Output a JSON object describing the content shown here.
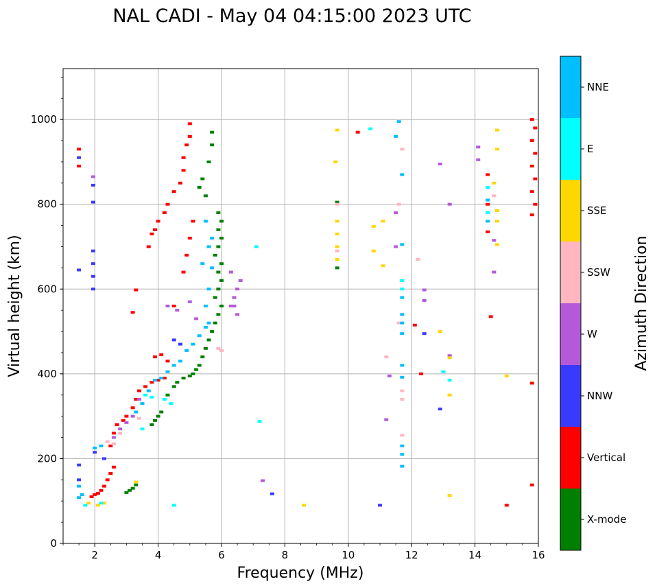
{
  "chart_data": {
    "type": "scatter",
    "title": "NAL CADI - May 04 04:15:00 2023 UTC",
    "xlabel": "Frequency (MHz)",
    "ylabel": "Virtual height (km)",
    "xlim": [
      1,
      16
    ],
    "ylim": [
      0,
      1120
    ],
    "xticks": [
      2,
      4,
      6,
      8,
      10,
      12,
      14,
      16
    ],
    "yticks": [
      0,
      200,
      400,
      600,
      800,
      1000
    ],
    "grid": true,
    "colorbar": {
      "title": "Azimuth Direction",
      "categories": [
        {
          "label": "X-mode",
          "color": "#008000"
        },
        {
          "label": "Vertical",
          "color": "#ff0000"
        },
        {
          "label": "NNW",
          "color": "#3a3aff"
        },
        {
          "label": "W",
          "color": "#b45ad8"
        },
        {
          "label": "SSW",
          "color": "#ffb6c1"
        },
        {
          "label": "SSE",
          "color": "#ffd700"
        },
        {
          "label": "E",
          "color": "#00ffff"
        },
        {
          "label": "NNE",
          "color": "#00bfff"
        }
      ]
    },
    "series": [
      {
        "name": "X-mode",
        "points": [
          [
            3.0,
            120
          ],
          [
            3.1,
            125
          ],
          [
            3.2,
            130
          ],
          [
            3.3,
            138
          ],
          [
            3.8,
            280
          ],
          [
            3.9,
            290
          ],
          [
            4.0,
            300
          ],
          [
            4.1,
            310
          ],
          [
            4.3,
            350
          ],
          [
            4.5,
            370
          ],
          [
            4.6,
            380
          ],
          [
            4.8,
            390
          ],
          [
            5.0,
            395
          ],
          [
            5.1,
            400
          ],
          [
            5.2,
            410
          ],
          [
            5.3,
            420
          ],
          [
            5.4,
            440
          ],
          [
            5.5,
            460
          ],
          [
            5.6,
            480
          ],
          [
            5.7,
            500
          ],
          [
            5.8,
            520
          ],
          [
            5.9,
            540
          ],
          [
            6.0,
            560
          ],
          [
            5.8,
            580
          ],
          [
            5.9,
            600
          ],
          [
            6.0,
            620
          ],
          [
            5.9,
            640
          ],
          [
            6.0,
            660
          ],
          [
            5.8,
            680
          ],
          [
            5.9,
            700
          ],
          [
            6.0,
            720
          ],
          [
            5.9,
            740
          ],
          [
            6.0,
            760
          ],
          [
            5.9,
            780
          ],
          [
            5.5,
            820
          ],
          [
            5.3,
            840
          ],
          [
            5.4,
            860
          ],
          [
            5.6,
            900
          ],
          [
            5.7,
            940
          ],
          [
            5.7,
            970
          ],
          [
            9.65,
            650
          ],
          [
            9.65,
            805
          ]
        ]
      },
      {
        "name": "Vertical",
        "points": [
          [
            1.5,
            930
          ],
          [
            1.5,
            890
          ],
          [
            1.9,
            110
          ],
          [
            2.0,
            115
          ],
          [
            2.1,
            118
          ],
          [
            2.2,
            125
          ],
          [
            2.3,
            135
          ],
          [
            2.4,
            150
          ],
          [
            2.5,
            165
          ],
          [
            2.6,
            180
          ],
          [
            2.5,
            230
          ],
          [
            2.6,
            260
          ],
          [
            2.7,
            280
          ],
          [
            2.9,
            290
          ],
          [
            3.0,
            300
          ],
          [
            3.2,
            320
          ],
          [
            3.3,
            340
          ],
          [
            3.4,
            360
          ],
          [
            3.6,
            370
          ],
          [
            3.8,
            380
          ],
          [
            4.0,
            385
          ],
          [
            4.2,
            390
          ],
          [
            3.9,
            440
          ],
          [
            4.1,
            445
          ],
          [
            4.3,
            430
          ],
          [
            3.7,
            700
          ],
          [
            3.8,
            730
          ],
          [
            3.9,
            740
          ],
          [
            4.0,
            760
          ],
          [
            4.2,
            780
          ],
          [
            4.3,
            800
          ],
          [
            4.5,
            830
          ],
          [
            4.7,
            850
          ],
          [
            4.8,
            880
          ],
          [
            4.8,
            910
          ],
          [
            4.9,
            940
          ],
          [
            5.0,
            960
          ],
          [
            5.0,
            990
          ],
          [
            3.2,
            545
          ],
          [
            3.3,
            598
          ],
          [
            4.5,
            560
          ],
          [
            4.8,
            640
          ],
          [
            4.9,
            680
          ],
          [
            5.0,
            720
          ],
          [
            5.1,
            760
          ],
          [
            15.8,
            775
          ],
          [
            15.9,
            800
          ],
          [
            15.8,
            830
          ],
          [
            15.9,
            860
          ],
          [
            15.8,
            890
          ],
          [
            15.9,
            920
          ],
          [
            15.8,
            950
          ],
          [
            15.9,
            980
          ],
          [
            15.8,
            1000
          ],
          [
            15.8,
            378
          ],
          [
            15.8,
            138
          ],
          [
            15.0,
            90
          ],
          [
            12.3,
            400
          ],
          [
            12.1,
            515
          ],
          [
            14.5,
            535
          ],
          [
            14.4,
            735
          ],
          [
            14.4,
            800
          ],
          [
            14.4,
            870
          ],
          [
            10.3,
            970
          ]
        ]
      },
      {
        "name": "NNW",
        "points": [
          [
            1.5,
            185
          ],
          [
            1.5,
            150
          ],
          [
            1.5,
            645
          ],
          [
            1.5,
            910
          ],
          [
            1.95,
            600
          ],
          [
            1.95,
            630
          ],
          [
            1.95,
            660
          ],
          [
            1.95,
            690
          ],
          [
            1.95,
            805
          ],
          [
            1.95,
            845
          ],
          [
            2.0,
            215
          ],
          [
            2.3,
            200
          ],
          [
            7.6,
            117
          ],
          [
            11.0,
            90
          ],
          [
            12.9,
            317
          ],
          [
            12.4,
            495
          ],
          [
            4.5,
            480
          ],
          [
            4.7,
            470
          ]
        ]
      },
      {
        "name": "W",
        "points": [
          [
            2.6,
            250
          ],
          [
            2.8,
            270
          ],
          [
            3.0,
            285
          ],
          [
            3.2,
            300
          ],
          [
            3.4,
            340
          ],
          [
            4.3,
            560
          ],
          [
            4.6,
            550
          ],
          [
            5.0,
            570
          ],
          [
            5.2,
            530
          ],
          [
            6.3,
            560
          ],
          [
            6.4,
            580
          ],
          [
            6.5,
            600
          ],
          [
            6.6,
            620
          ],
          [
            6.3,
            640
          ],
          [
            6.4,
            560
          ],
          [
            6.5,
            540
          ],
          [
            12.9,
            895
          ],
          [
            13.2,
            800
          ],
          [
            14.1,
            905
          ],
          [
            14.1,
            935
          ],
          [
            14.6,
            715
          ],
          [
            14.6,
            640
          ],
          [
            11.5,
            700
          ],
          [
            11.3,
            395
          ],
          [
            11.2,
            292
          ],
          [
            11.5,
            780
          ],
          [
            12.4,
            573
          ],
          [
            12.4,
            598
          ],
          [
            13.2,
            443
          ],
          [
            1.95,
            865
          ],
          [
            7.3,
            148
          ]
        ]
      },
      {
        "name": "SSW",
        "points": [
          [
            2.4,
            240
          ],
          [
            2.6,
            235
          ],
          [
            2.8,
            260
          ],
          [
            3.4,
            295
          ],
          [
            5.9,
            460
          ],
          [
            6.0,
            455
          ],
          [
            11.2,
            440
          ],
          [
            11.7,
            360
          ],
          [
            11.7,
            340
          ],
          [
            11.7,
            255
          ],
          [
            11.6,
            520
          ],
          [
            12.2,
            670
          ],
          [
            11.6,
            800
          ],
          [
            11.7,
            930
          ],
          [
            9.65,
            800
          ],
          [
            9.65,
            690
          ],
          [
            14.6,
            820
          ]
        ]
      },
      {
        "name": "SSE",
        "points": [
          [
            1.8,
            95
          ],
          [
            2.1,
            90
          ],
          [
            2.3,
            95
          ],
          [
            3.3,
            145
          ],
          [
            8.6,
            90
          ],
          [
            9.6,
            900
          ],
          [
            9.65,
            975
          ],
          [
            9.65,
            760
          ],
          [
            9.65,
            730
          ],
          [
            9.65,
            700
          ],
          [
            9.65,
            670
          ],
          [
            10.8,
            748
          ],
          [
            10.8,
            690
          ],
          [
            11.1,
            760
          ],
          [
            11.1,
            655
          ],
          [
            13.2,
            350
          ],
          [
            13.2,
            113
          ],
          [
            13.2,
            438
          ],
          [
            12.9,
            500
          ],
          [
            14.7,
            975
          ],
          [
            14.7,
            930
          ],
          [
            14.7,
            760
          ],
          [
            14.7,
            705
          ],
          [
            15.0,
            395
          ],
          [
            14.7,
            785
          ],
          [
            14.6,
            850
          ]
        ]
      },
      {
        "name": "E",
        "points": [
          [
            1.7,
            90
          ],
          [
            2.2,
            95
          ],
          [
            3.5,
            270
          ],
          [
            3.6,
            350
          ],
          [
            3.8,
            345
          ],
          [
            4.2,
            340
          ],
          [
            4.4,
            330
          ],
          [
            4.5,
            90
          ],
          [
            13.0,
            405
          ],
          [
            13.2,
            385
          ],
          [
            7.1,
            700
          ],
          [
            7.2,
            288
          ],
          [
            10.7,
            978
          ],
          [
            11.7,
            600
          ],
          [
            11.7,
            620
          ],
          [
            14.4,
            780
          ],
          [
            14.4,
            840
          ]
        ]
      },
      {
        "name": "NNE",
        "points": [
          [
            1.5,
            135
          ],
          [
            1.5,
            108
          ],
          [
            1.6,
            115
          ],
          [
            2.0,
            225
          ],
          [
            2.2,
            230
          ],
          [
            3.3,
            310
          ],
          [
            3.5,
            330
          ],
          [
            3.7,
            360
          ],
          [
            3.9,
            385
          ],
          [
            4.1,
            390
          ],
          [
            4.3,
            405
          ],
          [
            4.5,
            420
          ],
          [
            4.7,
            430
          ],
          [
            4.9,
            455
          ],
          [
            5.1,
            470
          ],
          [
            5.3,
            490
          ],
          [
            5.5,
            510
          ],
          [
            5.6,
            520
          ],
          [
            5.5,
            560
          ],
          [
            5.6,
            600
          ],
          [
            5.7,
            650
          ],
          [
            5.4,
            660
          ],
          [
            5.6,
            700
          ],
          [
            5.7,
            720
          ],
          [
            5.5,
            760
          ],
          [
            11.7,
            540
          ],
          [
            11.7,
            520
          ],
          [
            11.7,
            495
          ],
          [
            11.7,
            420
          ],
          [
            11.7,
            392
          ],
          [
            11.7,
            230
          ],
          [
            11.7,
            210
          ],
          [
            11.7,
            182
          ],
          [
            11.7,
            580
          ],
          [
            11.7,
            705
          ],
          [
            11.7,
            870
          ],
          [
            11.6,
            995
          ],
          [
            11.5,
            960
          ],
          [
            14.4,
            760
          ],
          [
            14.4,
            810
          ]
        ]
      }
    ]
  }
}
